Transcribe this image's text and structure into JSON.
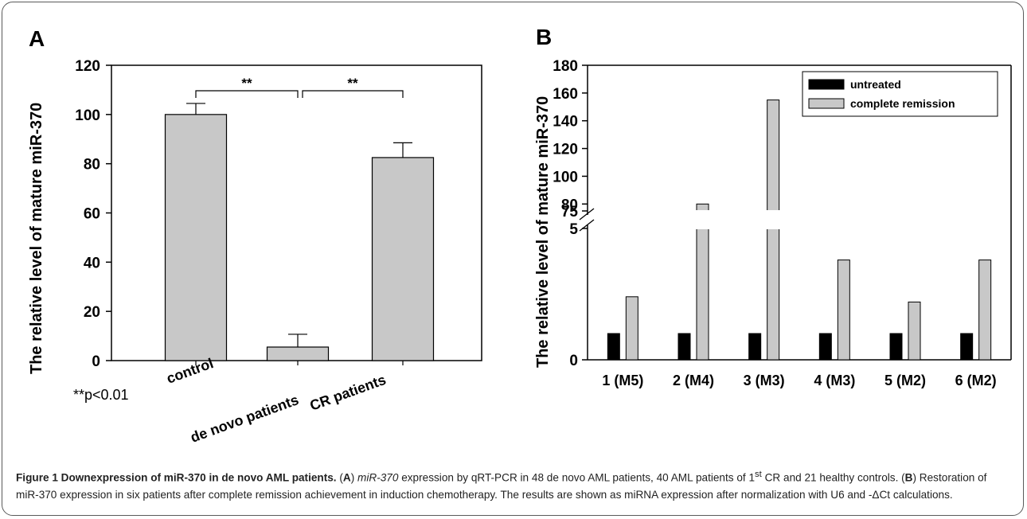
{
  "chart_data": [
    {
      "type": "bar",
      "panel_label": "A",
      "ylabel": "The relative level of mature miR-370",
      "categories": [
        "control",
        "de novo patients",
        "CR patients"
      ],
      "values": [
        100,
        5.5,
        82.5
      ],
      "error": [
        4.5,
        5.2,
        6
      ],
      "ylim": [
        0,
        120
      ],
      "yticks": [
        "0",
        "20",
        "40",
        "60",
        "80",
        "100",
        "120"
      ],
      "colors": {
        "bar": "#c8c8c8"
      },
      "annotations": [
        {
          "text": "**",
          "between": [
            "control",
            "de novo patients"
          ]
        },
        {
          "text": "**",
          "between": [
            "de novo patients",
            "CR patients"
          ]
        }
      ],
      "note": "**p<0.01",
      "grid": false
    },
    {
      "type": "bar",
      "panel_label": "B",
      "ylabel": "The relative level of mature miR-370",
      "categories": [
        "1 (M5)",
        "2 (M4)",
        "3 (M3)",
        "4 (M3)",
        "5 (M2)",
        "6 (M2)"
      ],
      "series": [
        {
          "name": "untreated",
          "values": [
            1,
            1,
            1,
            1,
            1,
            1
          ],
          "color": "#000000"
        },
        {
          "name": "complete remission",
          "values": [
            2.4,
            80,
            155,
            3.8,
            2.2,
            3.8
          ],
          "color": "#c8c8c8"
        }
      ],
      "yticks_lower": [
        "0",
        "5"
      ],
      "yticks_upper": [
        "75",
        "80",
        "100",
        "120",
        "140",
        "160",
        "180"
      ],
      "ylim_lower": [
        0,
        5
      ],
      "ylim_upper": [
        75,
        180
      ],
      "axis_break": true,
      "legend_position": "top-right",
      "grid": false
    }
  ],
  "caption": {
    "title": "Figure 1 Downexpression of miR-370 in de novo AML patients.",
    "part1": " (",
    "A": "A",
    "part2": ") ",
    "gene": "miR-370",
    "part3": " expression by qRT-PCR in 48 de novo AML patients, 40 AML patients of 1",
    "sup": "st",
    "part4": " CR and 21 healthy controls. (",
    "B": "B",
    "part5": ") Restoration of miR-370 expression in six patients after complete remission achievement in induction chemotherapy. The results are shown as miRNA expression after normalization with U6 and -ΔCt calculations."
  }
}
